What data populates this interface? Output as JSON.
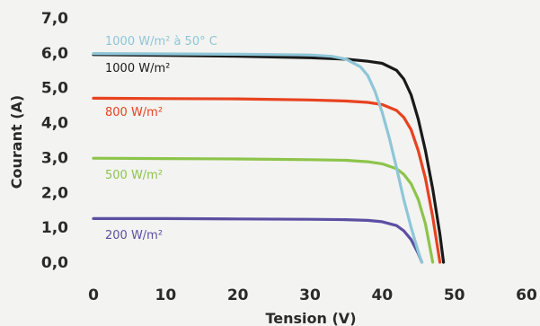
{
  "chart_data": {
    "type": "line",
    "xlabel": "Tension (V)",
    "ylabel": "Courant (A)",
    "xlim": [
      0,
      60
    ],
    "ylim": [
      0,
      7
    ],
    "xticks": [
      0,
      10,
      20,
      30,
      40,
      50,
      60
    ],
    "xtick_labels": [
      "0",
      "10",
      "20",
      "30",
      "40",
      "50",
      "60"
    ],
    "yticks": [
      0,
      1,
      2,
      3,
      4,
      5,
      6,
      7
    ],
    "ytick_labels": [
      "0,0",
      "1,0",
      "2,0",
      "3,0",
      "4,0",
      "5,0",
      "6,0",
      "7,0"
    ],
    "grid": false,
    "series": [
      {
        "name": "1000 W/m² à 50° C",
        "color": "#8ec6d8",
        "x": [
          0,
          10,
          20,
          30,
          33,
          35,
          37,
          38,
          39,
          40,
          41,
          42,
          43,
          44,
          45,
          45.5
        ],
        "y": [
          5.98,
          5.97,
          5.96,
          5.94,
          5.9,
          5.82,
          5.6,
          5.35,
          4.9,
          4.3,
          3.55,
          2.7,
          1.8,
          1.0,
          0.3,
          0
        ]
      },
      {
        "name": "1000 W/m²",
        "color": "#1a1a1a",
        "x": [
          0,
          10,
          20,
          30,
          35,
          38,
          40,
          42,
          43,
          44,
          45,
          46,
          47,
          48,
          48.5
        ],
        "y": [
          5.95,
          5.93,
          5.9,
          5.86,
          5.82,
          5.76,
          5.7,
          5.5,
          5.25,
          4.8,
          4.1,
          3.2,
          2.1,
          0.8,
          0
        ]
      },
      {
        "name": "800 W/m²",
        "color": "#e8421f",
        "x": [
          0,
          10,
          20,
          30,
          35,
          38,
          40,
          42,
          43,
          44,
          45,
          46,
          47,
          48
        ],
        "y": [
          4.7,
          4.69,
          4.68,
          4.65,
          4.62,
          4.58,
          4.52,
          4.35,
          4.15,
          3.8,
          3.2,
          2.4,
          1.3,
          0
        ]
      },
      {
        "name": "500 W/m²",
        "color": "#8cc44a",
        "x": [
          0,
          10,
          20,
          30,
          35,
          38,
          40,
          42,
          43,
          44,
          45,
          46,
          47
        ],
        "y": [
          2.98,
          2.97,
          2.96,
          2.94,
          2.92,
          2.88,
          2.82,
          2.68,
          2.52,
          2.25,
          1.8,
          1.1,
          0
        ]
      },
      {
        "name": "200 W/m²",
        "color": "#5b4fa3",
        "x": [
          0,
          10,
          20,
          30,
          35,
          38,
          40,
          42,
          43,
          44,
          45,
          45.5
        ],
        "y": [
          1.25,
          1.25,
          1.24,
          1.23,
          1.22,
          1.2,
          1.16,
          1.05,
          0.9,
          0.65,
          0.25,
          0
        ]
      }
    ]
  }
}
